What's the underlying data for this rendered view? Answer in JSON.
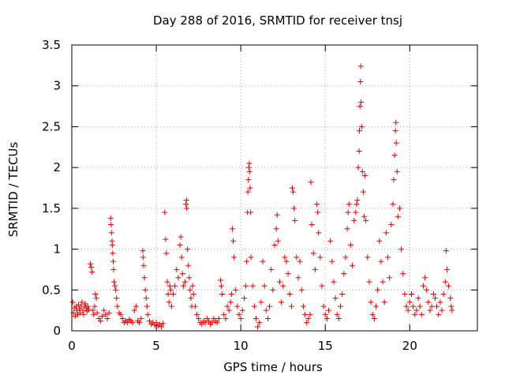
{
  "chart_data": {
    "type": "scatter",
    "title": "Day 288 of 2016, SRMTID for receiver tnsj",
    "xlabel": "GPS time / hours",
    "ylabel": "SRMTID / TECUs",
    "xlim": [
      0,
      24
    ],
    "ylim": [
      0,
      3.5
    ],
    "xticks": [
      0,
      5,
      10,
      15,
      20
    ],
    "xtick_labels": [
      "0",
      "5",
      "10",
      "15",
      "20"
    ],
    "yticks": [
      0,
      0.5,
      1,
      1.5,
      2,
      2.5,
      3,
      3.5
    ],
    "ytick_labels": [
      "0",
      "0.5",
      "1",
      "1.5",
      "2",
      "2.5",
      "3",
      "3.5"
    ],
    "grid": true,
    "marker": "+",
    "color": "#e00000",
    "series": [
      {
        "name": "tnsj",
        "points": [
          [
            0.05,
            0.35
          ],
          [
            0.1,
            0.22
          ],
          [
            0.15,
            0.28
          ],
          [
            0.2,
            0.18
          ],
          [
            0.25,
            0.3
          ],
          [
            0.3,
            0.25
          ],
          [
            0.35,
            0.2
          ],
          [
            0.4,
            0.32
          ],
          [
            0.45,
            0.27
          ],
          [
            0.5,
            0.22
          ],
          [
            0.55,
            0.3
          ],
          [
            0.6,
            0.35
          ],
          [
            0.65,
            0.25
          ],
          [
            0.7,
            0.2
          ],
          [
            0.75,
            0.3
          ],
          [
            0.8,
            0.33
          ],
          [
            0.85,
            0.28
          ],
          [
            0.9,
            0.24
          ],
          [
            0.95,
            0.3
          ],
          [
            1.0,
            0.26
          ],
          [
            1.1,
            0.82
          ],
          [
            1.15,
            0.78
          ],
          [
            1.2,
            0.72
          ],
          [
            1.25,
            0.25
          ],
          [
            1.3,
            0.2
          ],
          [
            1.35,
            0.3
          ],
          [
            1.4,
            0.45
          ],
          [
            1.45,
            0.4
          ],
          [
            1.5,
            0.22
          ],
          [
            1.6,
            0.15
          ],
          [
            1.7,
            0.12
          ],
          [
            1.8,
            0.18
          ],
          [
            1.9,
            0.25
          ],
          [
            2.0,
            0.2
          ],
          [
            2.1,
            0.15
          ],
          [
            2.2,
            0.22
          ],
          [
            2.3,
            1.38
          ],
          [
            2.32,
            1.3
          ],
          [
            2.35,
            1.2
          ],
          [
            2.38,
            1.1
          ],
          [
            2.4,
            1.05
          ],
          [
            2.42,
            0.95
          ],
          [
            2.45,
            0.85
          ],
          [
            2.47,
            0.75
          ],
          [
            2.5,
            0.6
          ],
          [
            2.55,
            0.55
          ],
          [
            2.6,
            0.5
          ],
          [
            2.65,
            0.4
          ],
          [
            2.7,
            0.3
          ],
          [
            2.8,
            0.22
          ],
          [
            2.9,
            0.2
          ],
          [
            3.0,
            0.15
          ],
          [
            3.1,
            0.1
          ],
          [
            3.2,
            0.12
          ],
          [
            3.3,
            0.1
          ],
          [
            3.4,
            0.14
          ],
          [
            3.5,
            0.12
          ],
          [
            3.6,
            0.1
          ],
          [
            3.7,
            0.25
          ],
          [
            3.8,
            0.3
          ],
          [
            3.9,
            0.12
          ],
          [
            4.0,
            0.1
          ],
          [
            4.1,
            0.15
          ],
          [
            4.2,
            0.98
          ],
          [
            4.22,
            0.9
          ],
          [
            4.25,
            0.8
          ],
          [
            4.3,
            0.65
          ],
          [
            4.35,
            0.5
          ],
          [
            4.4,
            0.4
          ],
          [
            4.45,
            0.3
          ],
          [
            4.5,
            0.2
          ],
          [
            4.6,
            0.12
          ],
          [
            4.7,
            0.08
          ],
          [
            4.8,
            0.1
          ],
          [
            4.9,
            0.07
          ],
          [
            5.0,
            0.1
          ],
          [
            5.1,
            0.06
          ],
          [
            5.2,
            0.08
          ],
          [
            5.3,
            0.05
          ],
          [
            5.4,
            0.09
          ],
          [
            5.5,
            1.45
          ],
          [
            5.55,
            1.12
          ],
          [
            5.6,
            0.95
          ],
          [
            5.65,
            0.6
          ],
          [
            5.7,
            0.45
          ],
          [
            5.75,
            0.35
          ],
          [
            5.8,
            0.55
          ],
          [
            5.85,
            0.5
          ],
          [
            5.9,
            0.3
          ],
          [
            6.0,
            0.45
          ],
          [
            6.1,
            0.55
          ],
          [
            6.2,
            0.75
          ],
          [
            6.3,
            0.65
          ],
          [
            6.4,
            1.05
          ],
          [
            6.45,
            1.15
          ],
          [
            6.5,
            0.9
          ],
          [
            6.55,
            0.7
          ],
          [
            6.6,
            0.55
          ],
          [
            6.7,
            0.6
          ],
          [
            6.75,
            1.55
          ],
          [
            6.78,
            1.6
          ],
          [
            6.8,
            1.5
          ],
          [
            6.85,
            1.0
          ],
          [
            6.9,
            0.8
          ],
          [
            6.95,
            0.65
          ],
          [
            7.0,
            0.5
          ],
          [
            7.05,
            0.4
          ],
          [
            7.1,
            0.3
          ],
          [
            7.15,
            0.55
          ],
          [
            7.2,
            0.45
          ],
          [
            7.3,
            0.3
          ],
          [
            7.4,
            0.2
          ],
          [
            7.5,
            0.15
          ],
          [
            7.6,
            0.1
          ],
          [
            7.7,
            0.08
          ],
          [
            7.8,
            0.12
          ],
          [
            7.9,
            0.1
          ],
          [
            8.0,
            0.15
          ],
          [
            8.1,
            0.12
          ],
          [
            8.2,
            0.08
          ],
          [
            8.3,
            0.1
          ],
          [
            8.4,
            0.15
          ],
          [
            8.5,
            0.12
          ],
          [
            8.6,
            0.1
          ],
          [
            8.7,
            0.15
          ],
          [
            8.8,
            0.62
          ],
          [
            8.85,
            0.55
          ],
          [
            8.9,
            0.45
          ],
          [
            9.0,
            0.2
          ],
          [
            9.1,
            0.15
          ],
          [
            9.2,
            0.3
          ],
          [
            9.3,
            0.25
          ],
          [
            9.4,
            0.35
          ],
          [
            9.45,
            0.45
          ],
          [
            9.5,
            1.25
          ],
          [
            9.55,
            1.1
          ],
          [
            9.6,
            0.9
          ],
          [
            9.7,
            0.5
          ],
          [
            9.8,
            0.3
          ],
          [
            9.9,
            0.2
          ],
          [
            10.0,
            0.15
          ],
          [
            10.1,
            0.25
          ],
          [
            10.2,
            0.4
          ],
          [
            10.3,
            0.55
          ],
          [
            10.35,
            0.85
          ],
          [
            10.4,
            1.45
          ],
          [
            10.42,
            1.7
          ],
          [
            10.45,
            1.85
          ],
          [
            10.47,
            2.0
          ],
          [
            10.5,
            2.05
          ],
          [
            10.52,
            1.95
          ],
          [
            10.55,
            1.75
          ],
          [
            10.58,
            1.45
          ],
          [
            10.6,
            0.9
          ],
          [
            10.7,
            0.55
          ],
          [
            10.8,
            0.3
          ],
          [
            10.9,
            0.15
          ],
          [
            11.0,
            0.05
          ],
          [
            11.1,
            0.1
          ],
          [
            11.2,
            0.35
          ],
          [
            11.3,
            0.85
          ],
          [
            11.4,
            0.55
          ],
          [
            11.5,
            0.25
          ],
          [
            11.6,
            0.15
          ],
          [
            11.7,
            0.3
          ],
          [
            11.8,
            0.75
          ],
          [
            11.9,
            0.5
          ],
          [
            12.0,
            1.05
          ],
          [
            12.1,
            1.25
          ],
          [
            12.15,
            1.42
          ],
          [
            12.2,
            1.1
          ],
          [
            12.3,
            0.6
          ],
          [
            12.4,
            0.35
          ],
          [
            12.5,
            0.55
          ],
          [
            12.6,
            0.9
          ],
          [
            12.7,
            0.85
          ],
          [
            12.8,
            0.7
          ],
          [
            12.9,
            0.45
          ],
          [
            13.0,
            0.3
          ],
          [
            13.05,
            1.75
          ],
          [
            13.1,
            1.7
          ],
          [
            13.15,
            1.5
          ],
          [
            13.2,
            1.35
          ],
          [
            13.3,
            0.9
          ],
          [
            13.4,
            0.65
          ],
          [
            13.5,
            0.85
          ],
          [
            13.6,
            0.5
          ],
          [
            13.7,
            0.3
          ],
          [
            13.8,
            0.2
          ],
          [
            13.9,
            0.1
          ],
          [
            14.0,
            0.15
          ],
          [
            14.1,
            0.2
          ],
          [
            14.15,
            1.82
          ],
          [
            14.2,
            1.3
          ],
          [
            14.3,
            0.95
          ],
          [
            14.4,
            0.75
          ],
          [
            14.5,
            1.55
          ],
          [
            14.55,
            1.45
          ],
          [
            14.6,
            1.2
          ],
          [
            14.7,
            0.9
          ],
          [
            14.8,
            0.55
          ],
          [
            14.9,
            0.3
          ],
          [
            15.0,
            0.2
          ],
          [
            15.1,
            0.15
          ],
          [
            15.2,
            0.25
          ],
          [
            15.3,
            1.1
          ],
          [
            15.4,
            0.85
          ],
          [
            15.5,
            0.6
          ],
          [
            15.6,
            0.4
          ],
          [
            15.7,
            0.2
          ],
          [
            15.8,
            0.15
          ],
          [
            15.9,
            0.3
          ],
          [
            16.0,
            0.45
          ],
          [
            16.1,
            0.7
          ],
          [
            16.2,
            0.9
          ],
          [
            16.3,
            1.25
          ],
          [
            16.35,
            1.45
          ],
          [
            16.4,
            1.55
          ],
          [
            16.5,
            1.05
          ],
          [
            16.6,
            0.8
          ],
          [
            16.7,
            1.35
          ],
          [
            16.8,
            1.45
          ],
          [
            16.85,
            1.55
          ],
          [
            16.9,
            1.6
          ],
          [
            16.95,
            2.0
          ],
          [
            17.0,
            2.2
          ],
          [
            17.02,
            2.45
          ],
          [
            17.05,
            2.75
          ],
          [
            17.08,
            3.05
          ],
          [
            17.1,
            3.24
          ],
          [
            17.12,
            2.8
          ],
          [
            17.15,
            2.5
          ],
          [
            17.2,
            1.95
          ],
          [
            17.25,
            1.7
          ],
          [
            17.3,
            1.4
          ],
          [
            17.35,
            1.9
          ],
          [
            17.4,
            1.35
          ],
          [
            17.5,
            0.9
          ],
          [
            17.6,
            0.6
          ],
          [
            17.7,
            0.35
          ],
          [
            17.8,
            0.2
          ],
          [
            17.9,
            0.15
          ],
          [
            18.0,
            0.3
          ],
          [
            18.1,
            0.5
          ],
          [
            18.2,
            1.1
          ],
          [
            18.3,
            0.85
          ],
          [
            18.4,
            0.6
          ],
          [
            18.5,
            0.35
          ],
          [
            18.6,
            1.2
          ],
          [
            18.7,
            0.9
          ],
          [
            18.8,
            0.65
          ],
          [
            18.9,
            1.3
          ],
          [
            19.0,
            1.55
          ],
          [
            19.05,
            1.85
          ],
          [
            19.1,
            2.15
          ],
          [
            19.15,
            2.45
          ],
          [
            19.18,
            2.55
          ],
          [
            19.2,
            2.3
          ],
          [
            19.25,
            1.95
          ],
          [
            19.3,
            1.4
          ],
          [
            19.4,
            1.5
          ],
          [
            19.5,
            1.0
          ],
          [
            19.6,
            0.7
          ],
          [
            19.7,
            0.45
          ],
          [
            19.8,
            0.3
          ],
          [
            19.9,
            0.25
          ],
          [
            20.0,
            0.35
          ],
          [
            20.1,
            0.45
          ],
          [
            20.2,
            0.3
          ],
          [
            20.3,
            0.2
          ],
          [
            20.4,
            0.25
          ],
          [
            20.5,
            0.4
          ],
          [
            20.6,
            0.3
          ],
          [
            20.7,
            0.2
          ],
          [
            20.8,
            0.55
          ],
          [
            20.9,
            0.65
          ],
          [
            21.0,
            0.5
          ],
          [
            21.1,
            0.35
          ],
          [
            21.2,
            0.25
          ],
          [
            21.3,
            0.3
          ],
          [
            21.4,
            0.45
          ],
          [
            21.5,
            0.4
          ],
          [
            21.6,
            0.3
          ],
          [
            21.7,
            0.2
          ],
          [
            21.8,
            0.35
          ],
          [
            21.9,
            0.25
          ],
          [
            22.0,
            0.45
          ],
          [
            22.1,
            0.6
          ],
          [
            22.15,
            0.98
          ],
          [
            22.2,
            0.75
          ],
          [
            22.3,
            0.55
          ],
          [
            22.4,
            0.4
          ],
          [
            22.45,
            0.3
          ],
          [
            22.5,
            0.25
          ]
        ]
      }
    ]
  }
}
